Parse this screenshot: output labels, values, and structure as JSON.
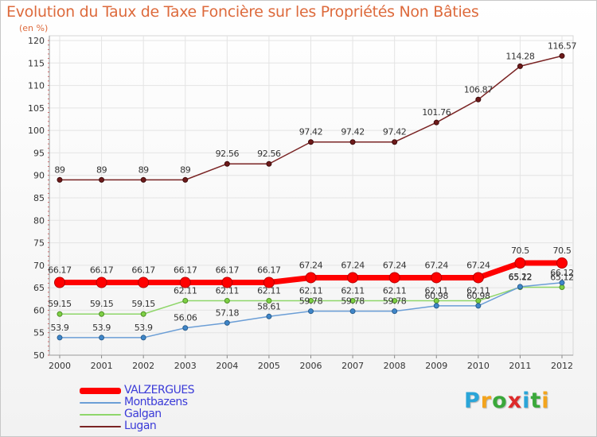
{
  "title": "Evolution du Taux de Taxe Foncière sur les Propriétés Non Bâties",
  "subtitle": "(en %)",
  "logo": {
    "letters": [
      "P",
      "r",
      "o",
      "x",
      "i",
      "t",
      "i"
    ],
    "colors": [
      "#2aa5d8",
      "#f3a41d",
      "#3aa83a",
      "#dd2a2a",
      "#2aa5d8",
      "#3aa83a",
      "#f3a41d"
    ]
  },
  "chart_data": {
    "type": "line",
    "title": "Evolution du Taux de Taxe Foncière sur les Propriétés Non Bâties",
    "ylabel": "(en %)",
    "xlabel": "",
    "ylim": [
      50,
      120
    ],
    "yticks": [
      "50",
      "55",
      "60",
      "65",
      "70",
      "75",
      "80",
      "85",
      "90",
      "95",
      "100",
      "105",
      "110",
      "115",
      "120"
    ],
    "x": [
      "2000",
      "2001",
      "2002",
      "2003",
      "2004",
      "2005",
      "2006",
      "2007",
      "2008",
      "2009",
      "2010",
      "2011",
      "2012"
    ],
    "grid": true,
    "legend_position": "bottom-left",
    "series": [
      {
        "name": "VALZERGUES",
        "color": "#ff0000",
        "values": [
          66.17,
          66.17,
          66.17,
          66.17,
          66.17,
          66.17,
          67.24,
          67.24,
          67.24,
          67.24,
          67.24,
          70.5,
          70.5
        ],
        "labels": [
          "66.17",
          "66.17",
          "66.17",
          "66.17",
          "66.17",
          "66.17",
          "67.24",
          "67.24",
          "67.24",
          "67.24",
          "67.24",
          "70.5",
          "70.5"
        ]
      },
      {
        "name": "Montbazens",
        "color": "#6b9ed6",
        "values": [
          53.9,
          53.9,
          53.9,
          56.06,
          57.18,
          58.61,
          59.78,
          59.78,
          59.78,
          60.98,
          60.98,
          65.22,
          66.12
        ],
        "labels": [
          "53.9",
          "53.9",
          "53.9",
          "56.06",
          "57.18",
          "58.61",
          "59.78",
          "59.78",
          "59.78",
          "60.98",
          "60.98",
          "65.22",
          "66.12"
        ]
      },
      {
        "name": "Galgan",
        "color": "#8fd66a",
        "values": [
          59.15,
          59.15,
          59.15,
          62.11,
          62.11,
          62.11,
          62.11,
          62.11,
          62.11,
          62.11,
          62.11,
          65.12,
          65.12
        ],
        "labels": [
          "59.15",
          "59.15",
          "59.15",
          "62.11",
          "62.11",
          "62.11",
          "62.11",
          "62.11",
          "62.11",
          "62.11",
          "62.11",
          "65.12",
          "65.12"
        ]
      },
      {
        "name": "Lugan",
        "color": "#7a2424",
        "values": [
          89,
          89,
          89,
          89,
          92.56,
          92.56,
          97.42,
          97.42,
          97.42,
          101.76,
          106.87,
          114.28,
          116.57
        ],
        "labels": [
          "89",
          "89",
          "89",
          "89",
          "92.56",
          "92.56",
          "97.42",
          "97.42",
          "97.42",
          "101.76",
          "106.87",
          "114.28",
          "116.57"
        ]
      }
    ]
  }
}
